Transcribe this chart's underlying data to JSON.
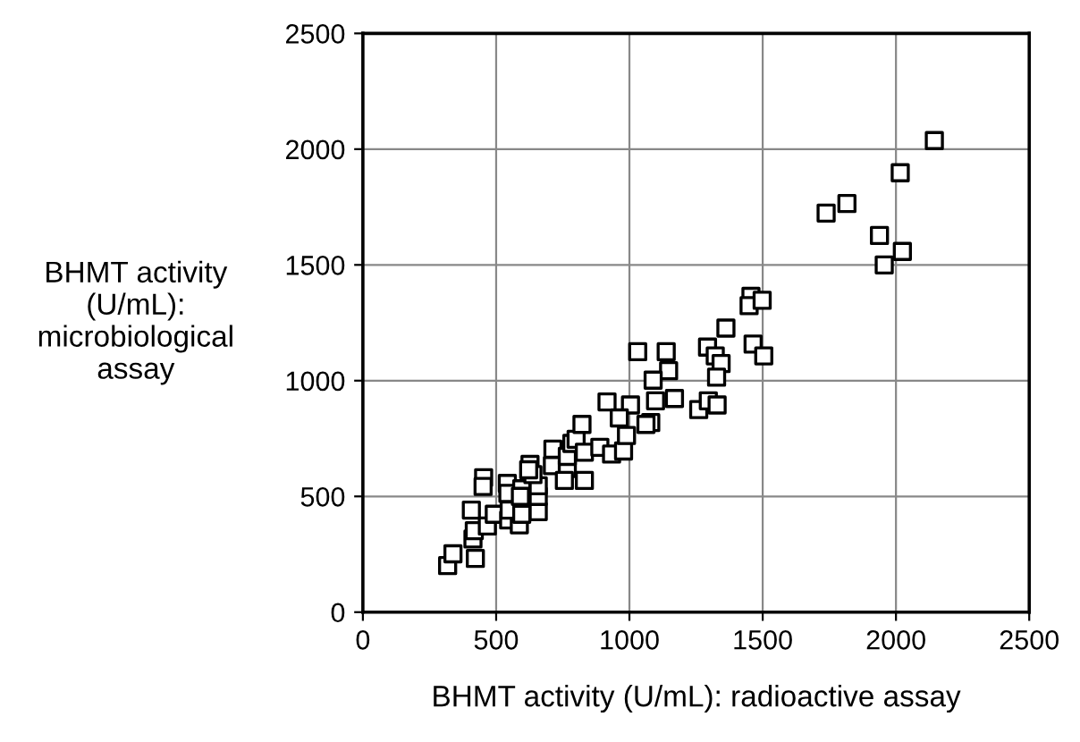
{
  "chart_data": {
    "type": "scatter",
    "xlabel": "BHMT activity (U/mL): radioactive assay",
    "ylabel": "BHMT activity\n(U/mL):\nmicrobiological\nassay",
    "xlim": [
      0,
      2500
    ],
    "ylim": [
      0,
      2500
    ],
    "xticks": [
      0,
      500,
      1000,
      1500,
      2000,
      2500
    ],
    "yticks": [
      0,
      500,
      1000,
      1500,
      2000,
      2500
    ],
    "grid": true,
    "marker": "square",
    "series": [
      {
        "color": "#000000",
        "x": [
          318,
          338,
          422,
          413,
          418,
          407,
          467,
          453,
          451,
          493,
          547,
          587,
          549,
          596,
          658,
          542,
          544,
          596,
          591,
          658,
          658,
          627,
          638,
          622,
          713,
          711,
          767,
          756,
          831,
          767,
          784,
          800,
          822,
          831,
          889,
          933,
          978,
          989,
          916,
          1004,
          962,
          1031,
          1138,
          1147,
          1089,
          1098,
          1080,
          1062,
          1169,
          2016,
          1738,
          1816,
          1938,
          2024,
          1956,
          1456,
          1449,
          1498,
          1362,
          1464,
          1504,
          1293,
          1322,
          1344,
          1327,
          1260,
          1296,
          1329,
          2144
        ],
        "values": [
          201,
          252,
          232,
          316,
          352,
          441,
          372,
          581,
          543,
          423,
          398,
          377,
          441,
          423,
          434,
          556,
          513,
          533,
          500,
          500,
          546,
          638,
          594,
          615,
          704,
          633,
          620,
          569,
          569,
          673,
          729,
          747,
          811,
          691,
          712,
          683,
          696,
          763,
          908,
          895,
          839,
          1125,
          1125,
          1043,
          1002,
          913,
          819,
          811,
          923,
          1898,
          1724,
          1765,
          1627,
          1558,
          1500,
          1364,
          1324,
          1347,
          1227,
          1158,
          1107,
          1145,
          1107,
          1074,
          1015,
          875,
          913,
          895,
          2037
        ]
      }
    ]
  }
}
